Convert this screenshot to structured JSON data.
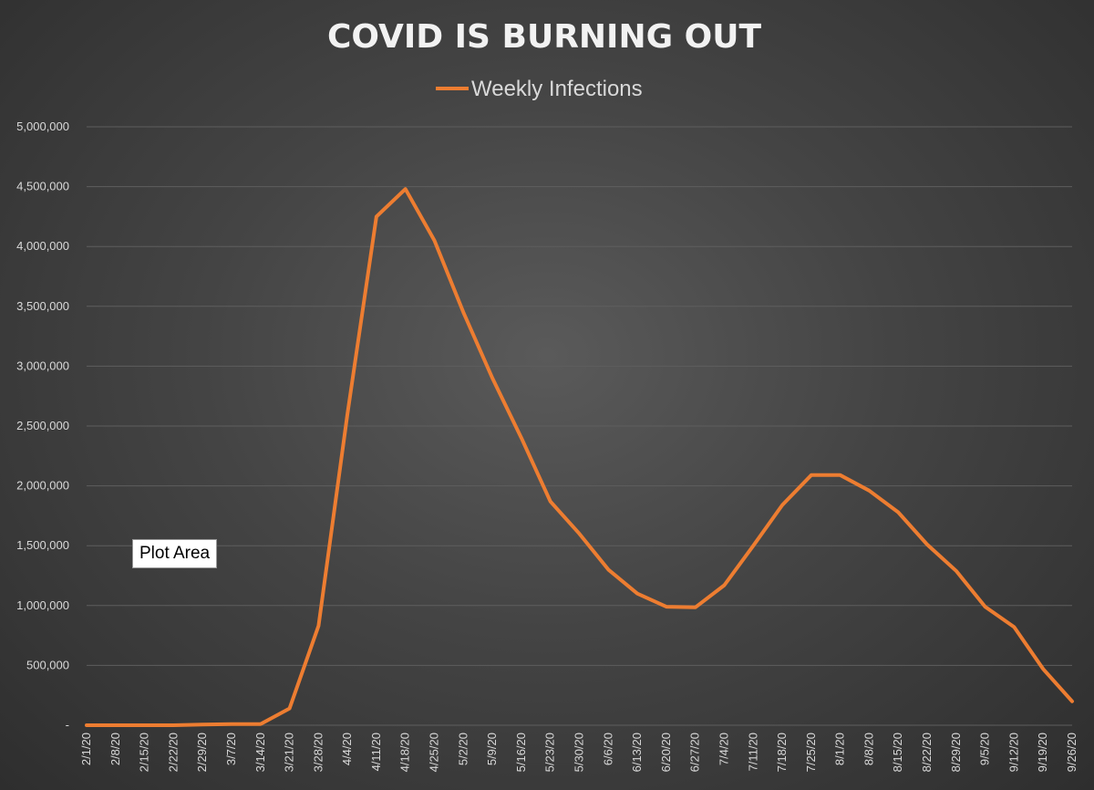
{
  "chart_data": {
    "type": "line",
    "title": "COVID IS BURNING OUT",
    "xlabel": "",
    "ylabel": "",
    "ylim": [
      0,
      5000000
    ],
    "yticks": [
      {
        "value": 0,
        "label": "-"
      },
      {
        "value": 500000,
        "label": "500,000"
      },
      {
        "value": 1000000,
        "label": "1,000,000"
      },
      {
        "value": 1500000,
        "label": "1,500,000"
      },
      {
        "value": 2000000,
        "label": "2,000,000"
      },
      {
        "value": 2500000,
        "label": "2,500,000"
      },
      {
        "value": 3000000,
        "label": "3,000,000"
      },
      {
        "value": 3500000,
        "label": "3,500,000"
      },
      {
        "value": 4000000,
        "label": "4,000,000"
      },
      {
        "value": 4500000,
        "label": "4,500,000"
      },
      {
        "value": 5000000,
        "label": "5,000,000"
      }
    ],
    "categories": [
      "2/1/20",
      "2/8/20",
      "2/15/20",
      "2/22/20",
      "2/29/20",
      "3/7/20",
      "3/14/20",
      "3/21/20",
      "3/28/20",
      "4/4/20",
      "4/11/20",
      "4/18/20",
      "4/25/20",
      "5/2/20",
      "5/9/20",
      "5/16/20",
      "5/23/20",
      "5/30/20",
      "6/6/20",
      "6/13/20",
      "6/20/20",
      "6/27/20",
      "7/4/20",
      "7/11/20",
      "7/18/20",
      "7/25/20",
      "8/1/20",
      "8/8/20",
      "8/15/20",
      "8/22/20",
      "8/29/20",
      "9/5/20",
      "9/12/20",
      "9/19/20",
      "9/26/20"
    ],
    "series": [
      {
        "name": "Weekly Infections",
        "color": "#ed7d31",
        "values": [
          0,
          0,
          0,
          0,
          5000,
          10000,
          10000,
          140000,
          830000,
          2600000,
          4250000,
          4480000,
          4050000,
          3450000,
          2900000,
          2400000,
          1870000,
          1600000,
          1300000,
          1100000,
          990000,
          985000,
          1170000,
          1500000,
          1840000,
          2090000,
          2090000,
          1960000,
          1780000,
          1510000,
          1290000,
          990000,
          820000,
          470000,
          200000
        ]
      }
    ],
    "grid": true,
    "legend_position": "top"
  },
  "overlay": {
    "tooltip_label": "Plot Area"
  }
}
